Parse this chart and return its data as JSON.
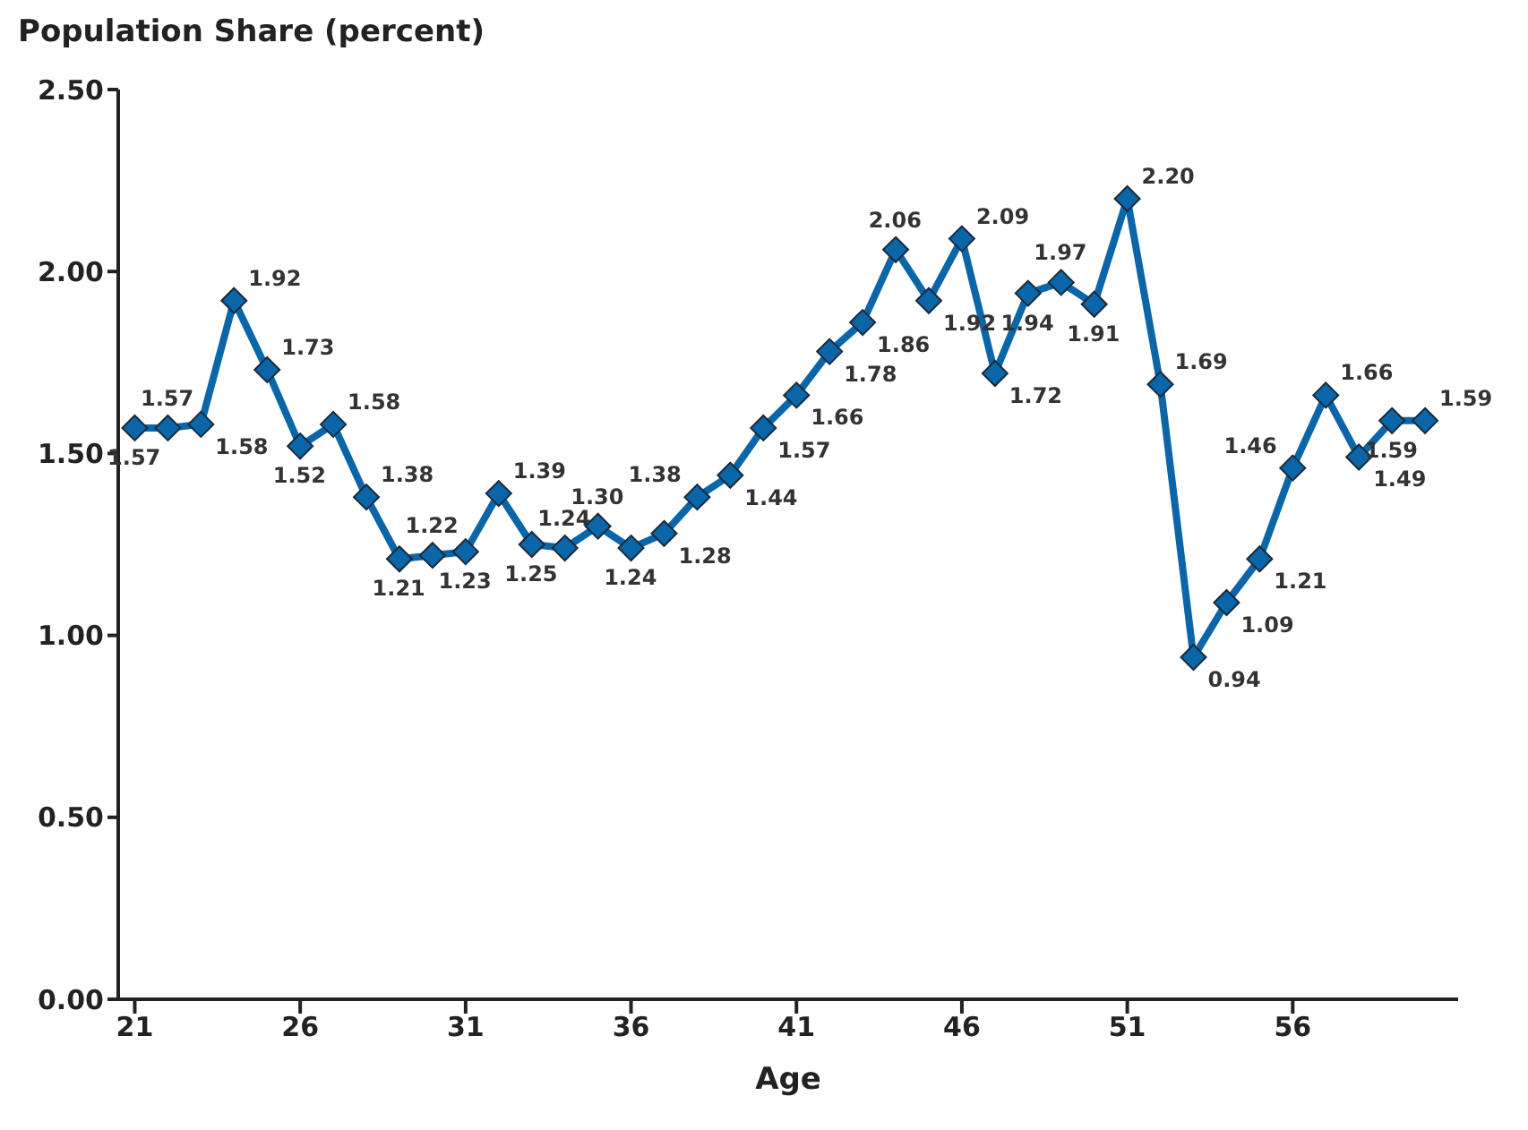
{
  "chart_data": {
    "type": "line",
    "title": "Population Share (percent)",
    "xlabel": "Age",
    "x": [
      21,
      22,
      23,
      24,
      25,
      26,
      27,
      28,
      29,
      30,
      31,
      32,
      33,
      34,
      35,
      36,
      37,
      38,
      39,
      40,
      41,
      42,
      43,
      44,
      45,
      46,
      47,
      48,
      49,
      50,
      51,
      52,
      53,
      54,
      55,
      56,
      57,
      58,
      59,
      60
    ],
    "series": [
      {
        "color": "#0a66a8",
        "values": [
          1.57,
          1.57,
          1.58,
          1.92,
          1.73,
          1.52,
          1.58,
          1.38,
          1.21,
          1.22,
          1.23,
          1.39,
          1.25,
          1.24,
          1.3,
          1.24,
          1.28,
          1.38,
          1.44,
          1.57,
          1.66,
          1.78,
          1.86,
          2.06,
          1.92,
          2.09,
          1.72,
          1.94,
          1.97,
          1.91,
          2.2,
          1.69,
          0.94,
          1.09,
          1.21,
          1.46,
          1.66,
          1.49,
          1.59,
          1.59
        ],
        "value_labels": [
          "1.57",
          "1.57",
          "1.58",
          "1.92",
          "1.73",
          "1.52",
          "1.58",
          "1.38",
          "1.21",
          "1.22",
          "1.23",
          "1.39",
          "1.25",
          "1.24",
          "1.30",
          "1.24",
          "1.28",
          "1.38",
          "1.44",
          "1.57",
          "1.66",
          "1.78",
          "1.86",
          "2.06",
          "1.92",
          "2.09",
          "1.72",
          "1.94",
          "1.97",
          "1.91",
          "2.20",
          "1.69",
          "0.94",
          "1.09",
          "1.21",
          "1.46",
          "1.66",
          "1.49",
          "1.59",
          "1.59"
        ]
      }
    ],
    "xlim": [
      20.5,
      61
    ],
    "xticks": [
      21,
      26,
      31,
      36,
      41,
      46,
      51,
      56
    ],
    "ylim": [
      0,
      2.5
    ],
    "yticks": [
      {
        "value": 0,
        "label": "0.00"
      },
      {
        "value": 0.5,
        "label": "0.50"
      },
      {
        "value": 1,
        "label": "1.00"
      },
      {
        "value": 1.5,
        "label": "1.50"
      },
      {
        "value": 2,
        "label": "2.00"
      },
      {
        "value": 2.5,
        "label": "2.50"
      }
    ],
    "grid": false,
    "legend": false,
    "marker": "diamond",
    "line_style": "solid"
  }
}
